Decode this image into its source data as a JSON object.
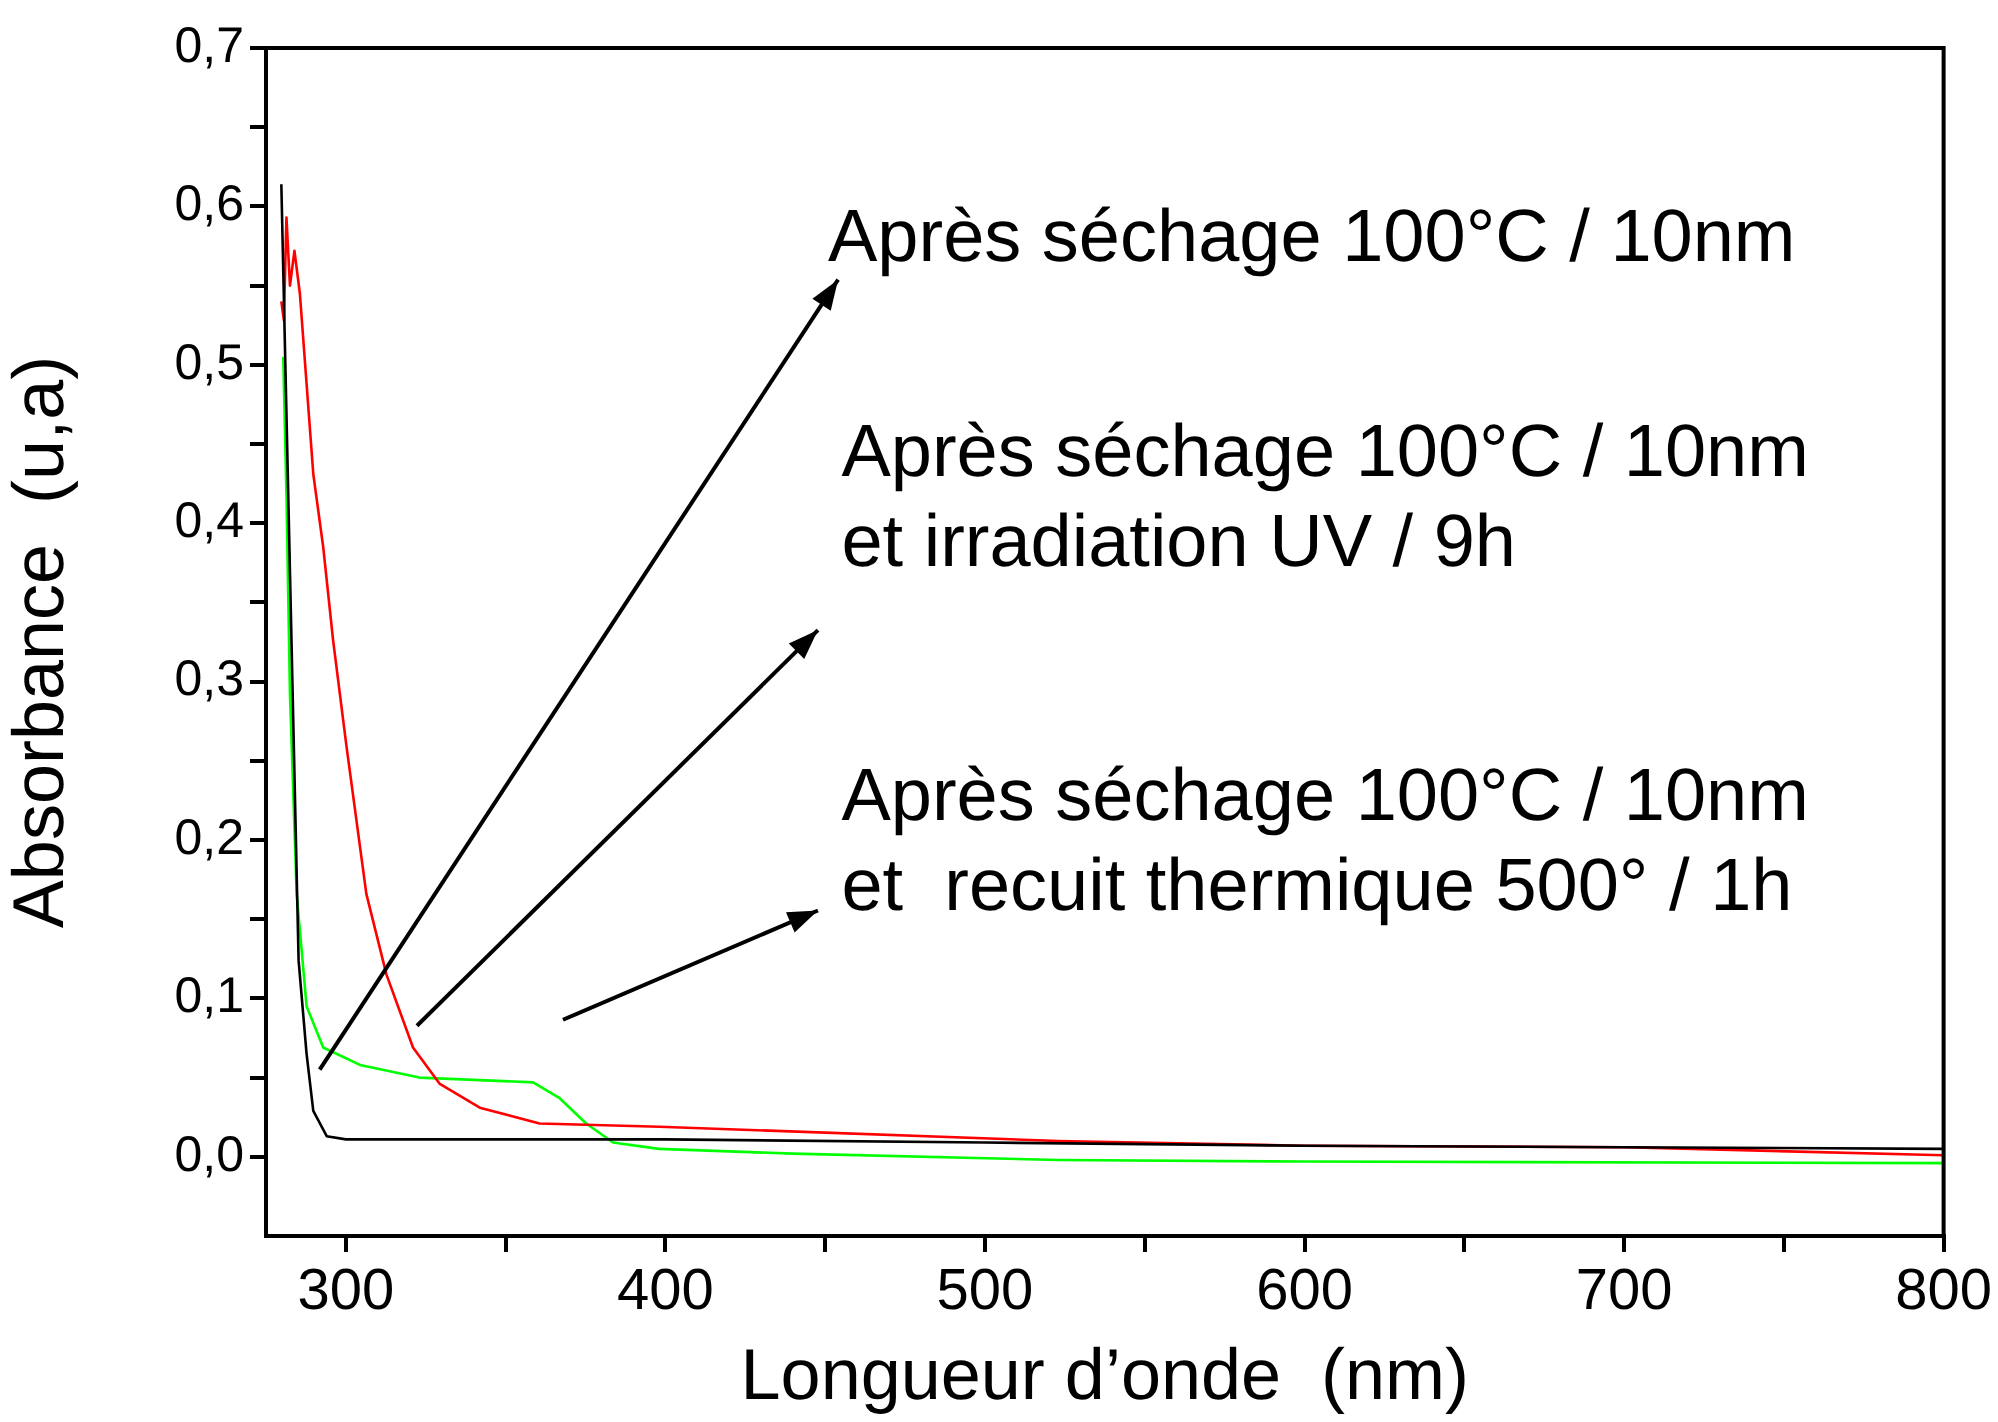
{
  "chart_data": {
    "type": "line",
    "xlabel": "Longueur d’onde  (nm)",
    "ylabel": "Absorbance  (u,a)",
    "xlim": [
      275,
      800
    ],
    "xticks": [
      300,
      {
        "value": 350,
        "label": null
      },
      400,
      {
        "value": 450,
        "label": null
      },
      500,
      {
        "value": 550,
        "label": null
      },
      600,
      {
        "value": 650,
        "label": null
      },
      700,
      {
        "value": 750,
        "label": null
      },
      800
    ],
    "ylim": [
      -0.05,
      0.7
    ],
    "yticks": [
      {
        "value": 0,
        "label": "0,0"
      },
      {
        "value": 0.05,
        "label": null
      },
      {
        "value": 0.1,
        "label": "0,1"
      },
      {
        "value": 0.15,
        "label": null
      },
      {
        "value": 0.2,
        "label": "0,2"
      },
      {
        "value": 0.25,
        "label": null
      },
      {
        "value": 0.3,
        "label": "0,3"
      },
      {
        "value": 0.35,
        "label": null
      },
      {
        "value": 0.4,
        "label": "0,4"
      },
      {
        "value": 0.45,
        "label": null
      },
      {
        "value": 0.5,
        "label": "0,5"
      },
      {
        "value": 0.55,
        "label": null
      },
      {
        "value": 0.6,
        "label": "0,6"
      },
      {
        "value": 0.65,
        "label": null
      },
      {
        "value": 0.7,
        "label": "0,7"
      }
    ],
    "grid": false,
    "legend": false,
    "marker": "none",
    "line_style": "solid",
    "series": [
      {
        "color": "#000000",
        "x": [
          279.8,
          285.2,
          287.7,
          289.8,
          294,
          300,
          350,
          400,
          500,
          600,
          700,
          800
        ],
        "values": [
          0.614,
          0.124,
          0.065,
          0.029,
          0.013,
          0.011,
          0.011,
          0.011,
          0.009,
          0.007,
          0.006,
          0.005
        ]
      },
      {
        "color": "#ff0000",
        "x": [
          279.8,
          280.6,
          281.4,
          282.5,
          283.9,
          285.6,
          289.8,
          292.9,
          296,
          300.2,
          306.4,
          312.7,
          321,
          329.4,
          341.9,
          360.6,
          398,
          523,
          600,
          700,
          800
        ],
        "values": [
          0.54,
          0.528,
          0.593,
          0.55,
          0.572,
          0.545,
          0.431,
          0.385,
          0.326,
          0.259,
          0.166,
          0.115,
          0.069,
          0.046,
          0.031,
          0.021,
          0.019,
          0.01,
          0.007,
          0.006,
          0.001
        ]
      },
      {
        "color": "#00ff00",
        "x": [
          280.4,
          281.4,
          282.5,
          284.6,
          287.7,
          292.9,
          304.4,
          323,
          358.6,
          366.9,
          375.2,
          383.6,
          398,
          439.8,
          523,
          600,
          800
        ],
        "values": [
          0.505,
          0.418,
          0.292,
          0.166,
          0.095,
          0.069,
          0.058,
          0.05,
          0.047,
          0.037,
          0.021,
          0.009,
          0.005,
          0.002,
          -0.002,
          -0.003,
          -0.004
        ]
      }
    ],
    "annotations": [
      "Après séchage 100°C / 10nm",
      "Après séchage 100°C / 10nm\net irradiation UV / 9h",
      "Après séchage 100°C / 10nm\net  recuit thermique 500° / 1h"
    ]
  }
}
